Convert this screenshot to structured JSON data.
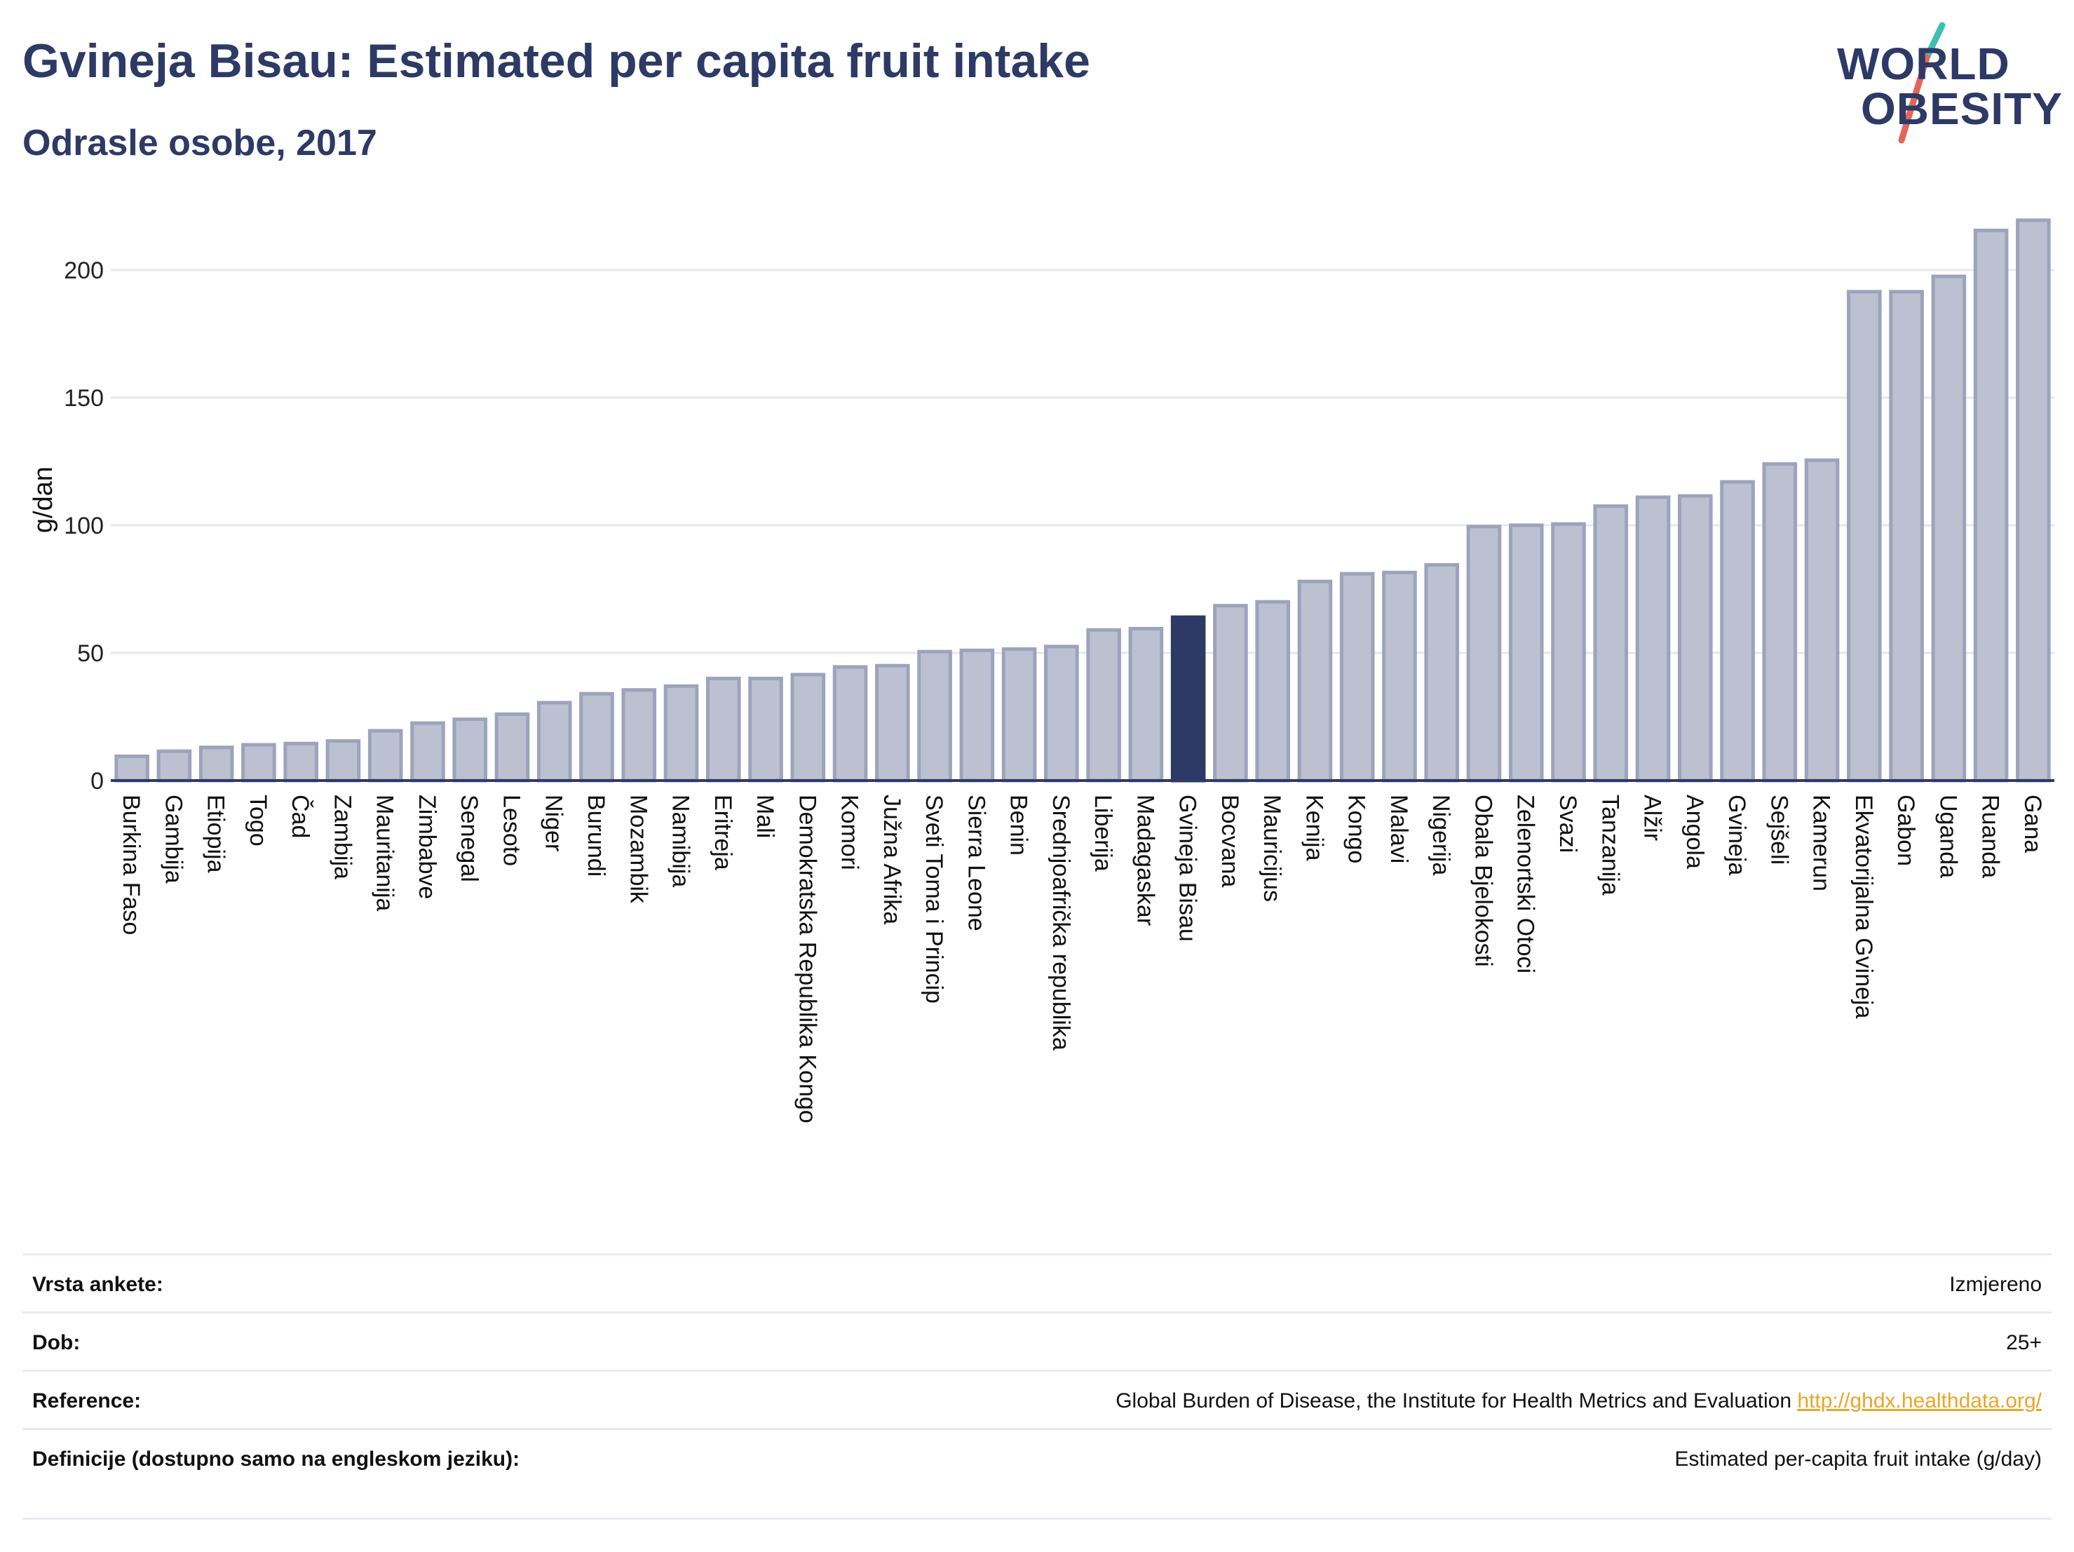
{
  "header": {
    "title": "Gvineja Bisau: Estimated per capita fruit intake",
    "subtitle": "Odrasle osobe, 2017"
  },
  "logo": {
    "line1": "WORLD",
    "line2": "OBESITY",
    "accent_teal": "#3fbfb4",
    "accent_red": "#e4655a"
  },
  "colors": {
    "bar": "#bcc1d2",
    "bar_border": "#9ca3bb",
    "highlight": "#2d3a66",
    "grid": "#e5e8ef",
    "axis": "#2d3a66"
  },
  "chart_data": {
    "type": "bar",
    "ylabel": "g/dan",
    "ylim": [
      0,
      220
    ],
    "yticks": [
      0,
      50,
      100,
      150,
      200
    ],
    "grid": true,
    "highlight": "Gvineja Bisau",
    "categories": [
      "Burkina Faso",
      "Gambija",
      "Etiopija",
      "Togo",
      "Čad",
      "Zambija",
      "Mauritanija",
      "Zimbabve",
      "Senegal",
      "Lesoto",
      "Niger",
      "Burundi",
      "Mozambik",
      "Namibija",
      "Eritreja",
      "Mali",
      "Demokratska Republika Kongo",
      "Komori",
      "Južna Afrika",
      "Sveti Toma i Princip",
      "Sierra Leone",
      "Benin",
      "Srednjoafrička republika",
      "Liberija",
      "Madagaskar",
      "Gvineja Bisau",
      "Bocvana",
      "Mauricijus",
      "Kenija",
      "Kongo",
      "Malavi",
      "Nigerija",
      "Obala Bjelokosti",
      "Zelenortski Otoci",
      "Svazi",
      "Tanzanija",
      "Alžir",
      "Angola",
      "Gvineja",
      "Sejšeli",
      "Kamerun",
      "Ekvatorijalna Gvineja",
      "Gabon",
      "Uganda",
      "Ruanda",
      "Gana"
    ],
    "values": [
      9.5,
      11.5,
      13,
      14,
      14.5,
      15.5,
      19.5,
      22.5,
      24,
      26,
      30.5,
      34,
      35.5,
      37,
      40,
      40,
      41.5,
      44.5,
      45,
      50.5,
      51,
      51.5,
      52.5,
      59,
      59.5,
      64,
      68.5,
      70,
      78,
      81,
      81.5,
      84.5,
      99.5,
      100,
      100.5,
      107.5,
      111,
      111.5,
      117,
      124,
      125.5,
      191.5,
      191.5,
      197.5,
      215.5,
      219.5
    ]
  },
  "meta": [
    {
      "key": "Vrsta ankete:",
      "value": "Izmjereno"
    },
    {
      "key": "Dob:",
      "value": "25+"
    },
    {
      "key": "Reference:",
      "value": "Global Burden of Disease, the Institute for Health Metrics and Evaluation",
      "link": "http://ghdx.healthdata.org/"
    },
    {
      "key": "Definicije (dostupno samo na engleskom jeziku):",
      "value": "Estimated per-capita fruit intake (g/day)"
    }
  ]
}
